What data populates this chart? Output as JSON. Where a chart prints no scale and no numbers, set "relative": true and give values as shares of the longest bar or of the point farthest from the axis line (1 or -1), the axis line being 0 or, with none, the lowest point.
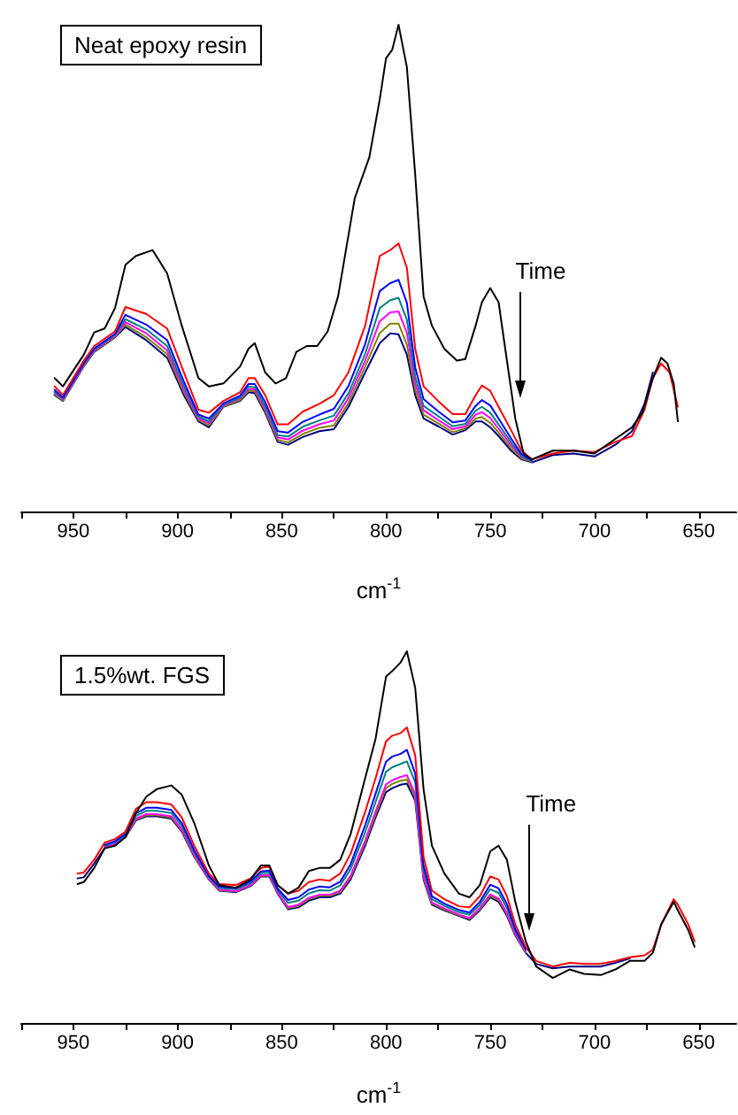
{
  "chart_data": [
    {
      "type": "line",
      "title": "Neat epoxy resin",
      "xlabel": "cm$^{-1}$",
      "relative": true,
      "marker": "none",
      "xlim": [
        975,
        632
      ],
      "xticks": [
        {
          "value": 975,
          "label": null
        },
        950,
        {
          "value": 925,
          "label": null
        },
        900,
        {
          "value": 875,
          "label": null
        },
        850,
        {
          "value": 825,
          "label": null
        },
        800,
        {
          "value": 775,
          "label": null
        },
        750,
        {
          "value": 725,
          "label": null
        },
        700,
        {
          "value": 675,
          "label": null
        },
        650
      ],
      "annotations": [
        {
          "text": "Time",
          "x": 736,
          "y": 0.233
        }
      ],
      "x": [
        959,
        955,
        945,
        940,
        930,
        925,
        915,
        905,
        897,
        890,
        885,
        878,
        870,
        866,
        863,
        858,
        852,
        847,
        840,
        832,
        825,
        818,
        810,
        803,
        798,
        794,
        790,
        786,
        782,
        775,
        768,
        762,
        757,
        754,
        750,
        746,
        740,
        735,
        730,
        720,
        710,
        700,
        690,
        682,
        676,
        672,
        668,
        664,
        660
      ],
      "series": [
        {
          "color": "#000000",
          "x": [
            959,
            955,
            945,
            940,
            935,
            930,
            925,
            920,
            912,
            905,
            898,
            890,
            885,
            878,
            870,
            866,
            863,
            858,
            853,
            848,
            843,
            838,
            833,
            828,
            823,
            815,
            808,
            803,
            800,
            797,
            794,
            790,
            786,
            782,
            778,
            772,
            766,
            762,
            757,
            754,
            750,
            746,
            742,
            738,
            734,
            730,
            720,
            710,
            700,
            690,
            682,
            677,
            672,
            668,
            665,
            662,
            660
          ],
          "values": [
            0.274,
            0.257,
            0.322,
            0.368,
            0.376,
            0.418,
            0.507,
            0.525,
            0.537,
            0.489,
            0.382,
            0.274,
            0.257,
            0.263,
            0.298,
            0.334,
            0.346,
            0.286,
            0.263,
            0.274,
            0.328,
            0.34,
            0.34,
            0.37,
            0.442,
            0.644,
            0.728,
            0.847,
            0.931,
            0.949,
            1,
            0.913,
            0.692,
            0.442,
            0.382,
            0.334,
            0.31,
            0.313,
            0.382,
            0.43,
            0.459,
            0.43,
            0.31,
            0.191,
            0.119,
            0.107,
            0.125,
            0.125,
            0.119,
            0.149,
            0.173,
            0.203,
            0.274,
            0.316,
            0.304,
            0.263,
            0.185
          ]
        },
        {
          "color": "#ff0000",
          "values": [
            0.257,
            0.239,
            0.31,
            0.34,
            0.37,
            0.42,
            0.406,
            0.376,
            0.286,
            0.209,
            0.203,
            0.227,
            0.245,
            0.274,
            0.274,
            0.239,
            0.179,
            0.179,
            0.205,
            0.221,
            0.239,
            0.286,
            0.382,
            0.525,
            0.537,
            0.551,
            0.501,
            0.334,
            0.257,
            0.227,
            0.2,
            0.2,
            0.239,
            0.259,
            0.248,
            0.215,
            0.167,
            0.125,
            0.107,
            0.119,
            0.125,
            0.122,
            0.143,
            0.155,
            0.209,
            0.274,
            0.304,
            0.286,
            0.215
          ]
        },
        {
          "color": "#0000ff",
          "values": [
            0.25,
            0.234,
            0.305,
            0.335,
            0.365,
            0.404,
            0.384,
            0.352,
            0.267,
            0.199,
            0.191,
            0.222,
            0.238,
            0.262,
            0.262,
            0.225,
            0.165,
            0.162,
            0.184,
            0.199,
            0.211,
            0.258,
            0.344,
            0.453,
            0.469,
            0.476,
            0.429,
            0.296,
            0.231,
            0.206,
            0.183,
            0.187,
            0.217,
            0.229,
            0.218,
            0.191,
            0.15,
            0.118,
            0.105,
            null,
            null,
            null,
            null,
            null,
            null,
            null,
            null,
            null,
            null
          ]
        },
        {
          "color": "#008080",
          "values": [
            0.246,
            0.232,
            0.303,
            0.333,
            0.363,
            0.395,
            0.374,
            0.34,
            0.258,
            0.195,
            0.185,
            0.22,
            0.234,
            0.257,
            0.255,
            0.217,
            0.157,
            0.154,
            0.174,
            0.187,
            0.197,
            0.243,
            0.324,
            0.418,
            0.434,
            0.439,
            0.394,
            0.277,
            0.217,
            0.196,
            0.175,
            0.18,
            0.207,
            0.215,
            0.203,
            0.179,
            0.142,
            0.114,
            0.103,
            null,
            null,
            null,
            null,
            null,
            null,
            null,
            null,
            null,
            null
          ]
        },
        {
          "color": "#ff00ff",
          "values": [
            0.244,
            0.23,
            0.301,
            0.331,
            0.361,
            0.389,
            0.366,
            0.331,
            0.251,
            0.191,
            0.181,
            0.218,
            0.232,
            0.252,
            0.251,
            0.212,
            0.152,
            0.148,
            0.166,
            0.179,
            0.187,
            0.233,
            0.31,
            0.391,
            0.409,
            0.411,
            0.367,
            0.263,
            0.208,
            0.188,
            0.169,
            0.175,
            0.199,
            0.204,
            0.192,
            0.17,
            0.136,
            0.112,
            0.103,
            null,
            null,
            null,
            null,
            null,
            null,
            null,
            null,
            null,
            null
          ]
        },
        {
          "color": "#808000",
          "values": [
            0.241,
            0.228,
            0.299,
            0.329,
            0.359,
            0.384,
            0.358,
            0.323,
            0.245,
            0.188,
            0.177,
            0.216,
            0.229,
            0.248,
            0.247,
            0.207,
            0.147,
            0.142,
            0.159,
            0.172,
            0.177,
            0.223,
            0.298,
            0.367,
            0.386,
            0.386,
            0.343,
            0.25,
            0.199,
            0.181,
            0.163,
            0.171,
            0.191,
            0.194,
            0.182,
            0.162,
            0.13,
            0.109,
            0.102,
            null,
            null,
            null,
            null,
            null,
            null,
            null,
            null,
            null,
            null
          ]
        },
        {
          "color": "#000080",
          "values": [
            0.239,
            0.227,
            0.298,
            0.328,
            0.358,
            0.379,
            0.352,
            0.316,
            0.239,
            0.185,
            0.173,
            0.215,
            0.227,
            0.245,
            0.243,
            0.203,
            0.143,
            0.137,
            0.153,
            0.165,
            0.169,
            0.215,
            0.286,
            0.346,
            0.366,
            0.364,
            0.322,
            0.239,
            0.191,
            0.175,
            0.158,
            0.167,
            0.185,
            0.185,
            0.173,
            0.155,
            0.125,
            0.107,
            0.101,
            0.116,
            0.119,
            0.113,
            0.137,
            0.165,
            0.221,
            0.286,
            null,
            null,
            null
          ]
        }
      ]
    },
    {
      "type": "line",
      "title": "1.5%wt. FGS",
      "xlabel": "cm$^{-1}$",
      "relative": true,
      "marker": "none",
      "xlim": [
        975,
        632
      ],
      "xticks": [
        {
          "value": 975,
          "label": null
        },
        950,
        {
          "value": 925,
          "label": null
        },
        900,
        {
          "value": 875,
          "label": null
        },
        850,
        {
          "value": 825,
          "label": null
        },
        800,
        {
          "value": 775,
          "label": null
        },
        750,
        {
          "value": 725,
          "label": null
        },
        700,
        {
          "value": 675,
          "label": null
        },
        650
      ],
      "annotations": [
        {
          "text": "Time",
          "x": 731,
          "y": 0.25
        }
      ],
      "x": [
        948,
        945,
        940,
        935,
        930,
        925,
        920,
        915,
        910,
        903,
        898,
        892,
        885,
        880,
        872,
        865,
        860,
        856,
        852,
        847,
        842,
        837,
        832,
        827,
        822,
        817,
        810,
        805,
        800,
        797,
        793,
        790,
        786,
        782,
        778,
        772,
        765,
        760,
        755,
        750,
        746,
        742,
        738,
        733,
        728,
        720,
        712,
        705,
        697,
        690,
        683,
        676,
        672,
        668,
        662,
        660,
        655,
        652
      ],
      "series": [
        {
          "color": "#000000",
          "x": [
            948,
            945,
            940,
            935,
            930,
            925,
            920,
            915,
            910,
            903,
            898,
            892,
            885,
            880,
            872,
            865,
            860,
            856,
            852,
            847,
            842,
            837,
            832,
            827,
            822,
            817,
            810,
            805,
            800,
            797,
            793,
            790,
            786,
            782,
            778,
            772,
            765,
            760,
            755,
            750,
            746,
            742,
            738,
            733,
            728,
            720,
            712,
            705,
            697,
            690,
            683,
            676,
            672,
            668,
            662,
            660,
            655,
            652
          ],
          "values": [
            0.374,
            0.379,
            0.417,
            0.47,
            0.477,
            0.5,
            0.565,
            0.609,
            0.629,
            0.639,
            0.614,
            0.538,
            0.424,
            0.371,
            0.364,
            0.386,
            0.424,
            0.424,
            0.371,
            0.348,
            0.364,
            0.409,
            0.417,
            0.417,
            0.439,
            0.508,
            0.659,
            0.765,
            0.932,
            0.947,
            0.97,
            1,
            0.902,
            0.629,
            0.477,
            0.402,
            0.348,
            0.338,
            0.371,
            0.462,
            0.477,
            0.439,
            0.326,
            0.22,
            0.152,
            0.121,
            0.144,
            0.132,
            0.129,
            0.144,
            0.167,
            0.167,
            0.189,
            0.265,
            0.326,
            0.303,
            0.25,
            0.205
          ]
        },
        {
          "color": "#ff0000",
          "values": [
            0.402,
            0.405,
            0.439,
            0.485,
            0.495,
            0.515,
            0.576,
            0.594,
            0.594,
            0.588,
            0.553,
            0.477,
            0.402,
            0.374,
            0.371,
            0.389,
            0.417,
            0.42,
            0.371,
            0.348,
            0.356,
            0.379,
            0.386,
            0.383,
            0.402,
            0.455,
            0.568,
            0.659,
            0.758,
            0.773,
            0.78,
            0.795,
            0.72,
            0.447,
            0.356,
            0.333,
            0.314,
            0.311,
            0.341,
            0.394,
            0.386,
            0.341,
            0.265,
            0.205,
            0.167,
            0.152,
            0.162,
            0.159,
            0.159,
            0.167,
            0.177,
            0.182,
            0.197,
            0.265,
            0.333,
            0.318,
            0.265,
            0.22
          ]
        },
        {
          "color": "#0000ff",
          "values": [
            null,
            null,
            null,
            0.479,
            0.489,
            0.509,
            0.564,
            0.579,
            0.579,
            0.573,
            0.538,
            0.465,
            0.396,
            0.367,
            0.363,
            0.381,
            0.408,
            0.41,
            0.362,
            0.331,
            0.338,
            0.359,
            0.367,
            0.365,
            0.38,
            0.427,
            0.532,
            0.617,
            0.703,
            0.717,
            0.724,
            0.735,
            0.671,
            0.423,
            0.341,
            0.321,
            0.304,
            0.297,
            0.326,
            0.372,
            0.362,
            0.32,
            0.253,
            0.199,
            null,
            null,
            null,
            null,
            null,
            null,
            null,
            null,
            null,
            null,
            null,
            null,
            null,
            null
          ]
        },
        {
          "color": "#008080",
          "values": [
            null,
            null,
            null,
            0.476,
            0.486,
            0.506,
            0.557,
            0.571,
            0.571,
            0.565,
            0.53,
            0.459,
            0.392,
            0.363,
            0.36,
            0.376,
            0.403,
            0.404,
            0.357,
            0.323,
            0.329,
            0.349,
            0.357,
            0.356,
            0.37,
            0.414,
            0.513,
            0.595,
            0.676,
            0.688,
            0.697,
            0.704,
            0.647,
            0.41,
            0.333,
            0.315,
            0.298,
            0.291,
            0.318,
            0.36,
            0.35,
            0.309,
            0.247,
            0.195,
            null,
            null,
            null,
            null,
            null,
            null,
            null,
            null,
            null,
            null,
            null,
            null,
            null,
            null
          ]
        },
        {
          "color": "#ff00ff",
          "values": [
            null,
            null,
            null,
            0.472,
            0.482,
            0.502,
            0.55,
            0.562,
            0.562,
            0.556,
            0.521,
            0.452,
            0.388,
            0.359,
            0.355,
            0.371,
            0.397,
            0.398,
            0.351,
            0.312,
            0.318,
            0.337,
            0.345,
            0.345,
            0.356,
            0.396,
            0.491,
            0.569,
            0.642,
            0.653,
            0.662,
            0.667,
            0.616,
            0.395,
            0.324,
            0.308,
            0.292,
            0.282,
            0.309,
            0.346,
            0.335,
            0.296,
            0.24,
            0.191,
            null,
            null,
            null,
            null,
            null,
            null,
            null,
            null,
            null,
            null,
            null,
            null,
            null,
            null
          ]
        },
        {
          "color": "#808000",
          "values": [
            null,
            null,
            null,
            null,
            null,
            0.501,
            0.547,
            0.559,
            0.559,
            0.553,
            0.518,
            0.449,
            0.387,
            0.357,
            0.354,
            0.37,
            0.396,
            0.396,
            0.35,
            0.309,
            0.315,
            0.333,
            0.342,
            0.342,
            0.352,
            0.392,
            0.484,
            0.561,
            0.632,
            0.643,
            0.652,
            0.655,
            0.608,
            0.391,
            0.321,
            0.305,
            0.29,
            0.28,
            0.306,
            0.342,
            0.331,
            0.292,
            0.237,
            0.19,
            null,
            null,
            null,
            null,
            null,
            null,
            null,
            null,
            null,
            null,
            null,
            null,
            null,
            null
          ]
        },
        {
          "color": "#000080",
          "values": [
            0.389,
            0.392,
            0.429,
            0.47,
            0.48,
            0.5,
            0.545,
            0.556,
            0.556,
            0.55,
            0.515,
            0.447,
            0.386,
            0.356,
            0.352,
            0.368,
            0.394,
            0.394,
            0.348,
            0.306,
            0.311,
            0.329,
            0.338,
            0.338,
            0.348,
            0.386,
            0.477,
            0.553,
            0.621,
            0.632,
            0.641,
            0.644,
            0.598,
            0.386,
            0.318,
            0.303,
            0.288,
            0.277,
            0.303,
            0.338,
            0.326,
            0.288,
            0.235,
            0.189,
            0.159,
            0.147,
            0.152,
            0.152,
            0.152,
            0.162,
            0.174,
            null,
            null,
            null,
            null,
            null,
            null,
            null
          ]
        }
      ]
    }
  ]
}
